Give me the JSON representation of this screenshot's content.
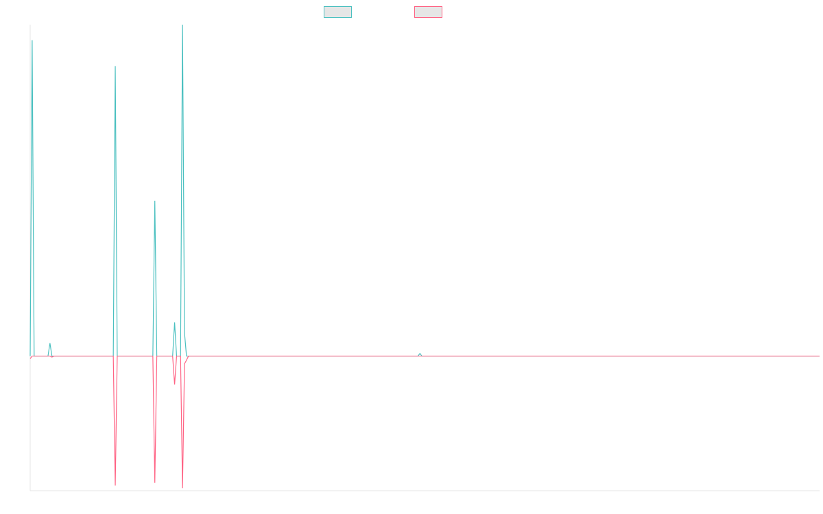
{
  "chart_data": {
    "type": "line",
    "title": "",
    "xlabel": "",
    "ylabel": "",
    "x_count": 400,
    "ylim": [
      -2.6,
      6.4
    ],
    "grid": false,
    "legend_position": "top-center",
    "series": [
      {
        "color": "#4bc0c0",
        "fill": "#e6e6e6",
        "points": [
          [
            0,
            0
          ],
          [
            1,
            6.1
          ],
          [
            2,
            0
          ],
          [
            3,
            0
          ],
          [
            9,
            0
          ],
          [
            10,
            0.25
          ],
          [
            11,
            0
          ],
          [
            42,
            0
          ],
          [
            43,
            5.6
          ],
          [
            44,
            0
          ],
          [
            62,
            0
          ],
          [
            63,
            3.0
          ],
          [
            64,
            0
          ],
          [
            72,
            0
          ],
          [
            73,
            0.65
          ],
          [
            74,
            0
          ],
          [
            76,
            0
          ],
          [
            77,
            6.4
          ],
          [
            78,
            0.45
          ],
          [
            79,
            0
          ],
          [
            196,
            0
          ],
          [
            197,
            0.05
          ],
          [
            198,
            0
          ],
          [
            399,
            0
          ]
        ]
      },
      {
        "color": "#ff6384",
        "fill": "#e6e6e6",
        "points": [
          [
            0,
            -0.05
          ],
          [
            1,
            0
          ],
          [
            2,
            0
          ],
          [
            9,
            0
          ],
          [
            10,
            0
          ],
          [
            11,
            -0.02
          ],
          [
            12,
            0
          ],
          [
            42,
            0
          ],
          [
            43,
            -2.5
          ],
          [
            44,
            0
          ],
          [
            62,
            0
          ],
          [
            63,
            -2.45
          ],
          [
            64,
            0
          ],
          [
            72,
            0
          ],
          [
            73,
            -0.55
          ],
          [
            74,
            0
          ],
          [
            76,
            0
          ],
          [
            77,
            -2.55
          ],
          [
            78,
            -0.15
          ],
          [
            79,
            -0.08
          ],
          [
            80,
            0
          ],
          [
            399,
            0
          ]
        ]
      }
    ]
  }
}
